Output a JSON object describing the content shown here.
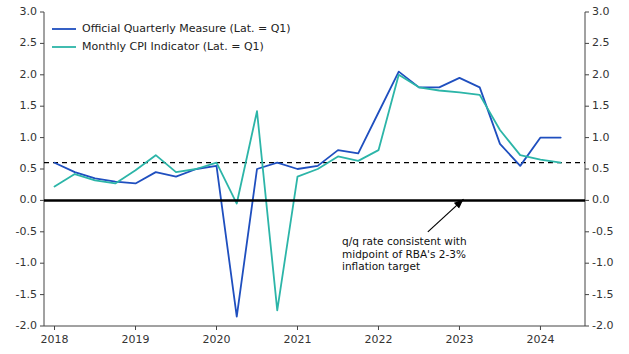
{
  "chart_data": {
    "type": "line",
    "x": [
      2018.0,
      2018.25,
      2018.5,
      2018.75,
      2019.0,
      2019.25,
      2019.5,
      2019.75,
      2020.0,
      2020.25,
      2020.5,
      2020.75,
      2021.0,
      2021.25,
      2021.5,
      2021.75,
      2022.0,
      2022.25,
      2022.5,
      2022.75,
      2023.0,
      2023.25,
      2023.5,
      2023.75,
      2024.0,
      2024.25
    ],
    "series": [
      {
        "name": "Official Quarterly Measure (Lat. = Q1)",
        "color": "#1F4FBF",
        "values": [
          0.6,
          0.45,
          0.35,
          0.3,
          0.27,
          0.45,
          0.38,
          0.5,
          0.55,
          -1.85,
          0.5,
          0.6,
          0.5,
          0.55,
          0.8,
          0.75,
          1.4,
          2.05,
          1.8,
          1.8,
          1.95,
          1.8,
          0.9,
          0.55,
          1.0,
          1.0
        ]
      },
      {
        "name": "Monthly CPI Indicator (Lat. = Q1)",
        "color": "#2CB5A8",
        "values": [
          0.22,
          0.42,
          0.32,
          0.27,
          0.48,
          0.72,
          0.45,
          0.5,
          0.6,
          -0.05,
          1.42,
          -1.75,
          0.38,
          0.5,
          0.7,
          0.63,
          0.8,
          2.0,
          1.8,
          1.75,
          1.72,
          1.68,
          1.12,
          0.72,
          0.65,
          0.6
        ]
      }
    ],
    "xlim": [
      2017.87,
      2024.55
    ],
    "xticks": [
      2018,
      2019,
      2020,
      2021,
      2022,
      2023,
      2024
    ],
    "ylim": [
      -2.0,
      3.0
    ],
    "yticks": [
      {
        "value": -2.0,
        "label": "-2.0"
      },
      -1.5,
      {
        "value": -1.0,
        "label": "-1.0"
      },
      -0.5,
      {
        "value": 0.0,
        "label": "0.0"
      },
      0.5,
      {
        "value": 1.0,
        "label": "1.0"
      },
      1.5,
      {
        "value": 2.0,
        "label": "2.0"
      },
      2.5,
      {
        "value": 3.0,
        "label": "3.0"
      }
    ],
    "y2lim": [
      -2.0,
      3.0
    ],
    "y2ticks": [
      {
        "value": -2.0,
        "label": "-2.0"
      },
      -1.5,
      {
        "value": -1.0,
        "label": "-1.0"
      },
      -0.5,
      {
        "value": 0.0,
        "label": "0.0"
      },
      0.5,
      {
        "value": 1.0,
        "label": "1.0"
      },
      1.5,
      {
        "value": 2.0,
        "label": "2.0"
      },
      2.5,
      {
        "value": 3.0,
        "label": "3.0"
      }
    ],
    "hlines": [
      {
        "y": 0.6,
        "line_style": "dashed",
        "color": "#000000"
      },
      {
        "y": 0.0,
        "line_style": "solid",
        "color": "#000000"
      }
    ],
    "annotations": [
      {
        "text": "q/q rate consistent with\nmidpoint of RBA's 2-3%\ninflation target",
        "x": 2021.55,
        "y": -0.55,
        "arrow_x": 2023.05,
        "arrow_y": 0.02
      }
    ],
    "legend": "upper left",
    "grid": false
  }
}
